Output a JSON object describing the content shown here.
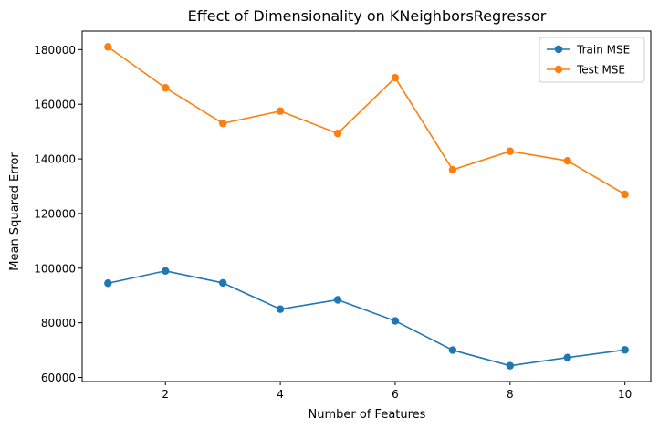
{
  "chart_data": {
    "type": "line",
    "title": "Effect of Dimensionality on KNeighborsRegressor",
    "xlabel": "Number of Features",
    "ylabel": "Mean Squared Error",
    "x": [
      1,
      2,
      3,
      4,
      5,
      6,
      7,
      8,
      9,
      10
    ],
    "xlim": [
      0.55,
      10.45
    ],
    "ylim": [
      58500,
      186800
    ],
    "xticks": [
      2,
      4,
      6,
      8,
      10
    ],
    "yticks": [
      60000,
      80000,
      100000,
      120000,
      140000,
      160000,
      180000
    ],
    "grid": false,
    "legend_position": "top-right",
    "series": [
      {
        "name": "Train MSE",
        "color": "#1f77b4",
        "marker": "circle",
        "values": [
          94500,
          99000,
          94600,
          85000,
          88400,
          80700,
          70000,
          64300,
          67300,
          70100
        ]
      },
      {
        "name": "Test MSE",
        "color": "#ff7f0e",
        "marker": "circle",
        "values": [
          181000,
          166000,
          153000,
          157500,
          149300,
          169700,
          136000,
          142800,
          139300,
          127000
        ]
      }
    ]
  }
}
